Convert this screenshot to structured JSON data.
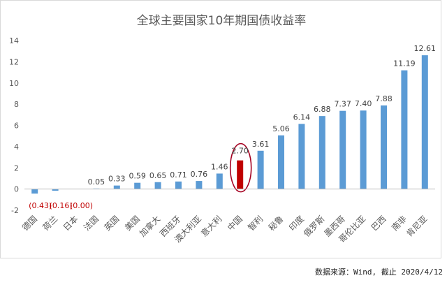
{
  "chart_data": {
    "type": "bar",
    "title": "全球主要国家10年期国债收益率",
    "xlabel": "",
    "ylabel": "",
    "ylim": [
      -2,
      14
    ],
    "yticks": [
      "-2",
      "0",
      "2",
      "4",
      "6",
      "8",
      "10",
      "12",
      "14"
    ],
    "grid": false,
    "categories": [
      "德国",
      "荷兰",
      "日本",
      "法国",
      "英国",
      "美国",
      "加拿大",
      "西班牙",
      "澳大利亚",
      "意大利",
      "中国",
      "智利",
      "秘鲁",
      "印度",
      "俄罗斯",
      "墨西哥",
      "哥伦比亚",
      "巴西",
      "南非",
      "肯尼亚"
    ],
    "values": [
      -0.43,
      -0.16,
      -0.0,
      0.05,
      0.33,
      0.59,
      0.65,
      0.71,
      0.76,
      1.46,
      2.7,
      3.61,
      5.06,
      6.14,
      6.88,
      7.37,
      7.4,
      7.88,
      11.19,
      12.61
    ],
    "data_labels": [
      "(0.43)",
      "(0.16)",
      "(0.00)",
      "0.05",
      "0.33",
      "0.59",
      "0.65",
      "0.71",
      "0.76",
      "1.46",
      "2.70",
      "3.61",
      "5.06",
      "6.14",
      "6.88",
      "7.37",
      "7.40",
      "7.88",
      "11.19",
      "12.61"
    ],
    "highlight_category": "中国",
    "colors": {
      "bar": "#5b9bd5",
      "highlight_bar": "#c00000",
      "negative_label": "#c00000",
      "ellipse": "#a50021",
      "axis": "#bfbfbf",
      "text": "#595959"
    }
  },
  "footer": {
    "source": "数据来源：Wind, 截止 2020/4/12"
  }
}
